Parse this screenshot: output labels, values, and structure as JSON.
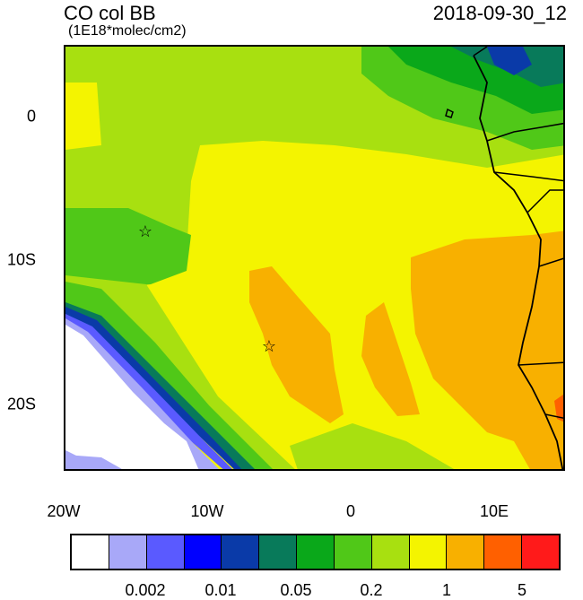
{
  "header": {
    "title": "CO col BB",
    "units": "(1E18*molec/cm2)",
    "datetime": "2018-09-30_12"
  },
  "axes": {
    "lat_labels": [
      "0",
      "10S",
      "20S"
    ],
    "lon_labels": [
      "20W",
      "10W",
      "0",
      "10E"
    ]
  },
  "colorbar": {
    "colors": [
      "#ffffff",
      "#a8a8f8",
      "#5a5aff",
      "#0000ff",
      "#0a3aa8",
      "#087a5a",
      "#0aa81a",
      "#50c818",
      "#a8e010",
      "#f4f400",
      "#f8b000",
      "#ff6000",
      "#ff1a1a"
    ],
    "labels": [
      "0.002",
      "0.01",
      "0.05",
      "0.2",
      "1",
      "5"
    ]
  },
  "markers": [
    {
      "symbol": "☆",
      "lon": -14.3,
      "lat": -8.1
    },
    {
      "symbol": "☆",
      "lon": -5.7,
      "lat": -16.0
    }
  ]
}
